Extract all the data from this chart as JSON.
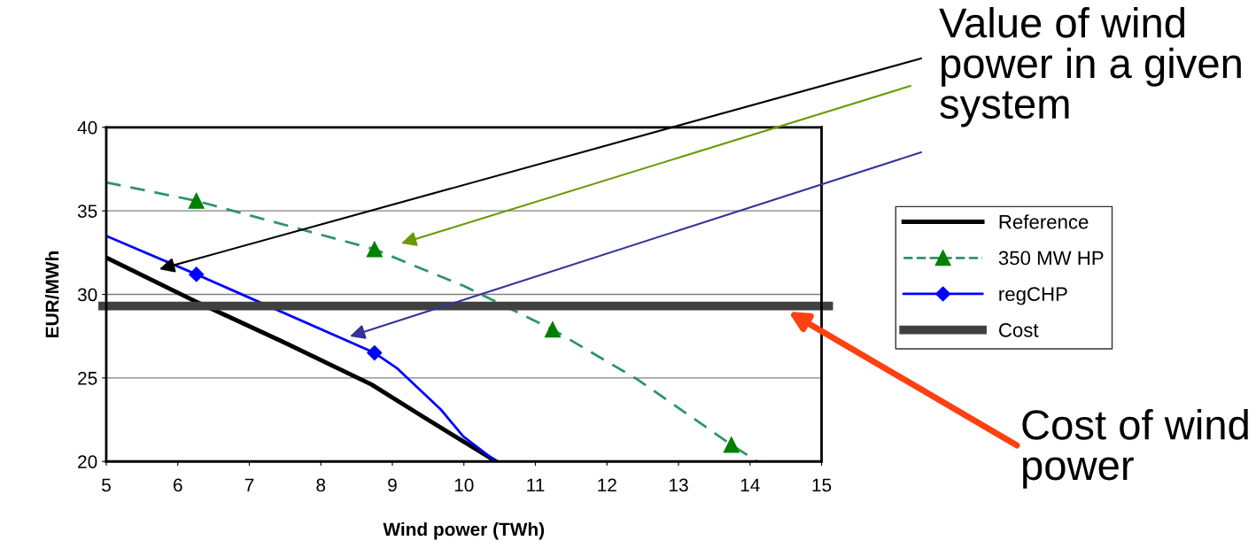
{
  "chart_data": {
    "type": "line",
    "xlabel": "Wind power (TWh)",
    "ylabel": "EUR/MWh",
    "xlim": [
      5,
      15
    ],
    "ylim": [
      20,
      40
    ],
    "xticks": [
      5,
      6,
      7,
      8,
      9,
      10,
      11,
      12,
      13,
      14,
      15
    ],
    "yticks": [
      20,
      25,
      30,
      35,
      40
    ],
    "grid": "y",
    "legend": "right",
    "series": [
      {
        "name": "Reference",
        "color": "#000000",
        "marker": "none",
        "line_style": "solid",
        "x": [
          5,
          6.24,
          7.5,
          8.71,
          9.42,
          10.45
        ],
        "values": [
          32.2,
          29.6,
          27.1,
          24.6,
          22.7,
          20
        ]
      },
      {
        "name": "350 MW HP",
        "color": "#2e9468",
        "marker": "none",
        "line_style": "dashed",
        "x": [
          5,
          6.26,
          8.75,
          10,
          11.24,
          12.43,
          13.74,
          14.1
        ],
        "values": [
          36.7,
          35.6,
          32.7,
          30.5,
          27.9,
          24.9,
          21,
          20
        ]
      },
      {
        "type": "scatter",
        "color": "#008000",
        "marker": "triangle",
        "x": [
          6.26,
          8.75,
          11.24,
          13.74
        ],
        "values": [
          35.6,
          32.7,
          27.9,
          21
        ]
      },
      {
        "name": "regCHP",
        "color": "#0000ff",
        "marker": "none",
        "line_style": "solid",
        "x": [
          5,
          6.26,
          8.75,
          9.06,
          9.68,
          9.99,
          10.45
        ],
        "values": [
          33.5,
          31.2,
          26.5,
          25.6,
          23.1,
          21.5,
          20
        ]
      },
      {
        "type": "scatter",
        "color": "#0000ff",
        "marker": "diamond",
        "x": [
          6.26,
          8.75
        ],
        "values": [
          31.2,
          26.5
        ]
      }
    ],
    "ref_lines": [
      {
        "axis": "y",
        "value": 29.3,
        "label": "Cost",
        "color": "#404040"
      }
    ],
    "annotations": [
      "Value of wind\npower in a given\nsystem",
      "Cost of wind\npower"
    ]
  }
}
